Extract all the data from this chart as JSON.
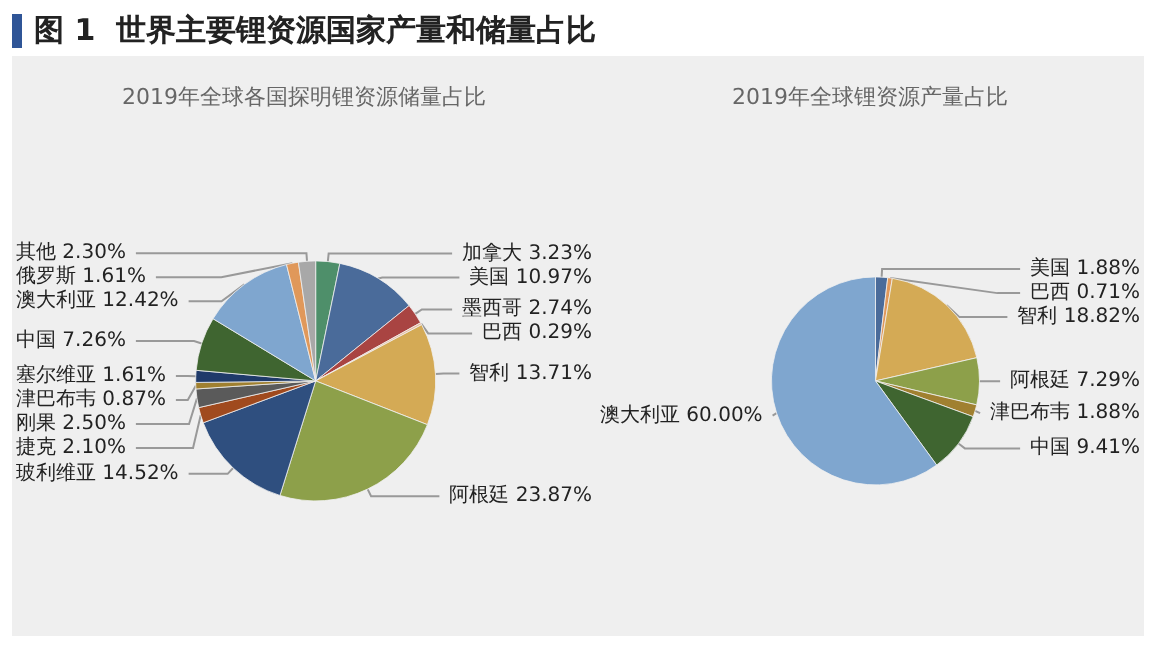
{
  "chart_data": [
    {
      "type": "pie",
      "title": "2019年全球各国探明锂资源储量占比",
      "annotations": [
        "图 1  世界主要锂资源国家产量和储量占比"
      ],
      "categories": [
        "加拿大",
        "美国",
        "墨西哥",
        "巴西",
        "智利",
        "阿根廷",
        "玻利维亚",
        "捷克",
        "刚果",
        "津巴布韦",
        "塞尔维亚",
        "中国",
        "澳大利亚",
        "俄罗斯",
        "其他"
      ],
      "values": [
        3.23,
        10.97,
        2.74,
        0.29,
        13.71,
        23.87,
        14.52,
        2.1,
        2.5,
        0.87,
        1.61,
        7.26,
        12.42,
        1.61,
        2.3
      ],
      "value_labels": [
        "3.23%",
        "10.97%",
        "2.74%",
        "0.29%",
        "13.71%",
        "23.87%",
        "14.52%",
        "2.10%",
        "2.50%",
        "0.87%",
        "1.61%",
        "7.26%",
        "12.42%",
        "1.61%",
        "2.30%"
      ],
      "colors": [
        "#4e8f6a",
        "#4a6b9a",
        "#a94442",
        "#e8b89a",
        "#d4aa55",
        "#8da04a",
        "#2f4f7f",
        "#a04a1e",
        "#5a5a5a",
        "#a08030",
        "#1f3a6a",
        "#3f6530",
        "#7fa6cf",
        "#e0985a",
        "#a8a8a8"
      ]
    },
    {
      "type": "pie",
      "title": "2019年全球锂资源产量占比",
      "categories": [
        "美国",
        "巴西",
        "智利",
        "阿根廷",
        "津巴布韦",
        "中国",
        "澳大利亚"
      ],
      "values": [
        1.88,
        0.71,
        18.82,
        7.29,
        1.88,
        9.41,
        60.0
      ],
      "value_labels": [
        "1.88%",
        "0.71%",
        "18.82%",
        "7.29%",
        "1.88%",
        "9.41%",
        "60.00%"
      ],
      "colors": [
        "#4a6b9a",
        "#e0985a",
        "#d4aa55",
        "#8da04a",
        "#a08030",
        "#3f6530",
        "#7fa6cf"
      ]
    }
  ]
}
